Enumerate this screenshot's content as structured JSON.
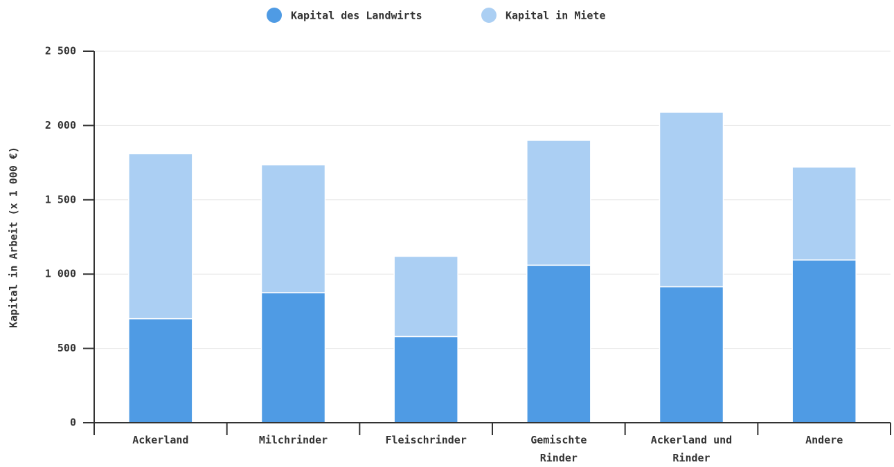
{
  "chart_data": {
    "type": "bar",
    "stacked": true,
    "categories": [
      "Ackerland",
      "Milchrinder",
      "Fleischrinder",
      "Gemischte Rinder",
      "Ackerland und Rinder",
      "Andere"
    ],
    "series": [
      {
        "name": "Kapital des Landwirts",
        "color": "#4f9be4",
        "values": [
          700,
          875,
          580,
          1060,
          915,
          1095
        ]
      },
      {
        "name": "Kapital in Miete",
        "color": "#abcff3",
        "values": [
          1110,
          860,
          540,
          840,
          1175,
          625
        ]
      }
    ],
    "y_label": "Kapital in Arbeit (x 1 000 €)",
    "ylim": [
      0,
      2500
    ],
    "yticks": [
      0,
      500,
      {
        "value": 1000,
        "label": "1 000"
      },
      {
        "value": 1500,
        "label": "1 500"
      },
      {
        "value": 2000,
        "label": "2 000"
      },
      {
        "value": 2500,
        "label": "2 500"
      }
    ],
    "grid": true,
    "legend": "top"
  }
}
